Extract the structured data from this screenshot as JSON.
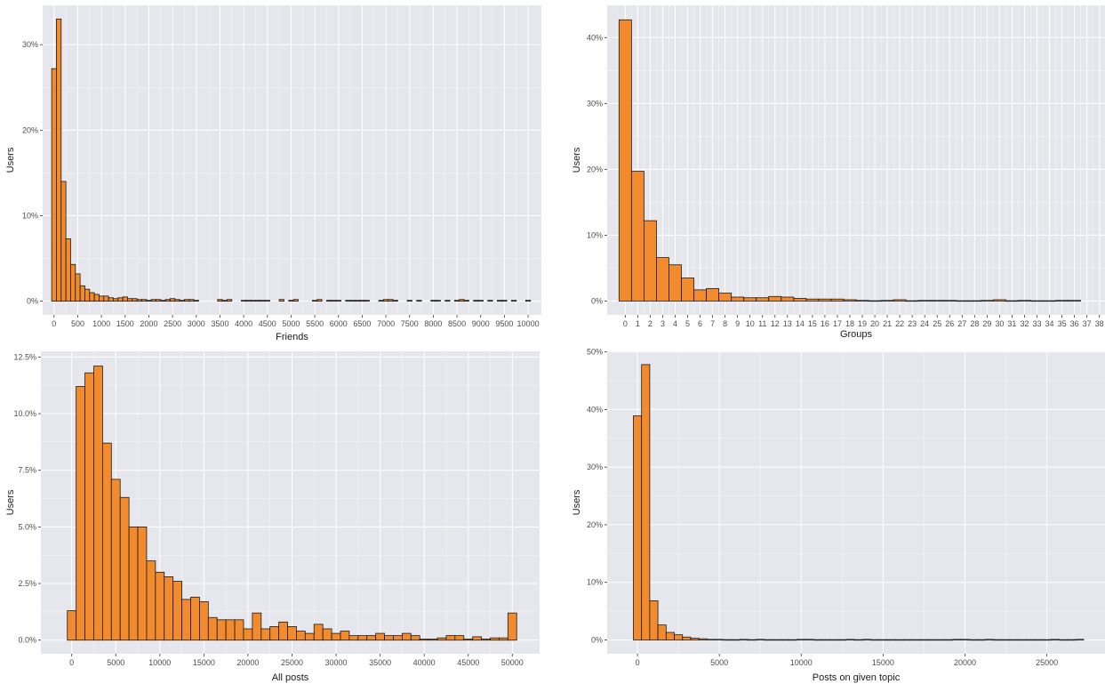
{
  "colors": {
    "panel_background": "#e5e7ec",
    "grid": "#ffffff",
    "bar_fill": "#f28a2e",
    "bar_stroke": "#1a1a1a"
  },
  "chart_data": [
    {
      "type": "bar",
      "xlabel": "Friends",
      "ylabel": "Users",
      "xlim": [
        -240,
        10280
      ],
      "ylim": [
        -1.6,
        34.6
      ],
      "bin_width": 100,
      "x_ticks": [
        0,
        500,
        1000,
        1500,
        2000,
        2500,
        3000,
        3500,
        4000,
        4500,
        5000,
        5500,
        6000,
        6500,
        7000,
        7500,
        8000,
        8500,
        9000,
        9500,
        10000
      ],
      "x_tick_labels": [
        "0",
        "500",
        "1000",
        "1500",
        "2000",
        "2500",
        "3000",
        "3500",
        "4000",
        "4500",
        "5000",
        "5500",
        "6000",
        "6500",
        "7000",
        "7500",
        "8000",
        "8500",
        "9000",
        "9500",
        "10000"
      ],
      "y_ticks": [
        0,
        10,
        20,
        30
      ],
      "y_tick_labels": [
        "0%",
        "10%",
        "20%",
        "30%"
      ],
      "x": [
        0,
        100,
        200,
        300,
        400,
        500,
        600,
        700,
        800,
        900,
        1000,
        1100,
        1200,
        1300,
        1400,
        1500,
        1600,
        1700,
        1800,
        1900,
        2000,
        2100,
        2200,
        2300,
        2400,
        2500,
        2600,
        2700,
        2800,
        2900,
        3000,
        3500,
        3600,
        3700,
        4000,
        4100,
        4200,
        4300,
        4400,
        4500,
        4800,
        5000,
        5100,
        5500,
        5600,
        5800,
        5900,
        6000,
        6200,
        6300,
        6400,
        6500,
        6600,
        6900,
        7000,
        7100,
        7200,
        7500,
        7700,
        8000,
        8100,
        8300,
        8500,
        8600,
        8700,
        8900,
        9000,
        9200,
        9400,
        9500,
        9700,
        10000
      ],
      "values": [
        27.2,
        33.0,
        14.0,
        7.3,
        4.3,
        3.2,
        1.8,
        1.4,
        1.0,
        0.8,
        0.6,
        0.6,
        0.4,
        0.3,
        0.4,
        0.5,
        0.3,
        0.3,
        0.2,
        0.2,
        0.1,
        0.2,
        0.2,
        0.1,
        0.2,
        0.3,
        0.2,
        0.1,
        0.2,
        0.2,
        0.1,
        0.2,
        0.1,
        0.2,
        0.1,
        0.1,
        0.1,
        0.1,
        0.1,
        0.1,
        0.2,
        0.1,
        0.2,
        0.1,
        0.2,
        0.1,
        0.1,
        0.1,
        0.1,
        0.1,
        0.1,
        0.1,
        0.1,
        0.1,
        0.2,
        0.2,
        0.1,
        0.1,
        0.1,
        0.1,
        0.1,
        0.1,
        0.1,
        0.2,
        0.1,
        0.1,
        0.1,
        0.1,
        0.1,
        0.1,
        0.1,
        0.1
      ]
    },
    {
      "type": "bar",
      "xlabel": "Groups",
      "ylabel": "Users",
      "xlim": [
        -1.45,
        38.45
      ],
      "ylim": [
        -2.1,
        44.9
      ],
      "bin_width": 1,
      "x_ticks": [
        0,
        1,
        2,
        3,
        4,
        5,
        6,
        7,
        8,
        9,
        10,
        11,
        12,
        13,
        14,
        15,
        16,
        17,
        18,
        19,
        20,
        21,
        22,
        23,
        24,
        25,
        26,
        27,
        28,
        29,
        30,
        31,
        32,
        33,
        34,
        35,
        36,
        37,
        38
      ],
      "x_tick_labels": [
        "0",
        "1",
        "2",
        "3",
        "4",
        "5",
        "6",
        "7",
        "8",
        "9",
        "10",
        "11",
        "12",
        "13",
        "14",
        "15",
        "16",
        "17",
        "18",
        "19",
        "20",
        "21",
        "22",
        "23",
        "24",
        "25",
        "26",
        "27",
        "28",
        "29",
        "30",
        "31",
        "32",
        "33",
        "34",
        "35",
        "36",
        "37",
        "38"
      ],
      "y_ticks": [
        0,
        10,
        20,
        30,
        40
      ],
      "y_tick_labels": [
        "0%",
        "10%",
        "20%",
        "30%",
        "40%"
      ],
      "x": [
        0,
        1,
        2,
        3,
        4,
        5,
        6,
        7,
        8,
        9,
        10,
        11,
        12,
        13,
        14,
        15,
        16,
        17,
        18,
        19,
        20,
        21,
        22,
        23,
        24,
        25,
        26,
        27,
        28,
        29,
        30,
        31,
        32,
        33,
        34,
        35,
        36
      ],
      "values": [
        42.7,
        19.7,
        12.2,
        6.6,
        5.5,
        3.5,
        1.7,
        1.9,
        1.2,
        0.6,
        0.5,
        0.5,
        0.7,
        0.6,
        0.4,
        0.3,
        0.3,
        0.3,
        0.2,
        0.1,
        0.05,
        0.1,
        0.2,
        0.05,
        0.1,
        0.1,
        0.1,
        0.05,
        0.05,
        0.1,
        0.2,
        0.05,
        0.1,
        0.05,
        0.05,
        0.1,
        0.1
      ]
    },
    {
      "type": "bar",
      "xlabel": "All posts",
      "ylabel": "Users",
      "xlim": [
        -3500,
        53100
      ],
      "ylim": [
        -0.6,
        12.75
      ],
      "bin_width": 1000,
      "x_ticks": [
        0,
        5000,
        10000,
        15000,
        20000,
        25000,
        30000,
        35000,
        40000,
        45000,
        50000
      ],
      "x_tick_labels": [
        "0",
        "5000",
        "10000",
        "15000",
        "20000",
        "25000",
        "30000",
        "35000",
        "40000",
        "45000",
        "50000"
      ],
      "y_ticks": [
        0,
        2.5,
        5,
        7.5,
        10,
        12.5
      ],
      "y_tick_labels": [
        "0.0%",
        "2.5%",
        "5.0%",
        "7.5%",
        "10.0%",
        "12.5%"
      ],
      "x": [
        0,
        1000,
        2000,
        3000,
        4000,
        5000,
        6000,
        7000,
        8000,
        9000,
        10000,
        11000,
        12000,
        13000,
        14000,
        15000,
        16000,
        17000,
        18000,
        19000,
        20000,
        21000,
        22000,
        23000,
        24000,
        25000,
        26000,
        27000,
        28000,
        29000,
        30000,
        31000,
        32000,
        33000,
        34000,
        35000,
        36000,
        37000,
        38000,
        39000,
        40000,
        41000,
        42000,
        43000,
        44000,
        45000,
        46000,
        47000,
        48000,
        49000,
        50000
      ],
      "values": [
        1.3,
        11.2,
        11.8,
        12.1,
        8.7,
        7.1,
        6.3,
        5.0,
        5.0,
        3.5,
        3.0,
        2.8,
        2.6,
        1.8,
        1.9,
        1.7,
        1.0,
        0.9,
        0.9,
        0.9,
        0.5,
        1.2,
        0.5,
        0.6,
        0.8,
        0.6,
        0.4,
        0.3,
        0.7,
        0.5,
        0.3,
        0.4,
        0.2,
        0.2,
        0.2,
        0.3,
        0.2,
        0.2,
        0.3,
        0.2,
        0.05,
        0.05,
        0.1,
        0.2,
        0.2,
        0.05,
        0.15,
        0.05,
        0.1,
        0.1,
        1.2
      ]
    },
    {
      "type": "bar",
      "xlabel": "Posts on given topic",
      "ylabel": "Users",
      "xlim": [
        -1850,
        28550
      ],
      "ylim": [
        -2.4,
        50.1
      ],
      "bin_width": 500,
      "x_ticks": [
        0,
        5000,
        10000,
        15000,
        20000,
        25000
      ],
      "x_tick_labels": [
        "0",
        "5000",
        "10000",
        "15000",
        "20000",
        "25000"
      ],
      "y_ticks": [
        0,
        10,
        20,
        30,
        40,
        50
      ],
      "y_tick_labels": [
        "0%",
        "10%",
        "20%",
        "30%",
        "40%",
        "50%"
      ],
      "x": [
        0,
        500,
        1000,
        1500,
        2000,
        2500,
        3000,
        3500,
        4000,
        4500,
        5000,
        5500,
        6000,
        6500,
        7000,
        7500,
        8000,
        8500,
        9000,
        9500,
        10000,
        10500,
        11000,
        11500,
        12000,
        12500,
        13000,
        13500,
        14000,
        14500,
        15000,
        15500,
        16000,
        16500,
        17000,
        17500,
        18000,
        18500,
        19000,
        19500,
        20000,
        20500,
        21000,
        21500,
        22000,
        22500,
        23000,
        23500,
        24000,
        24500,
        25000,
        25500,
        26000,
        26500,
        27000
      ],
      "values": [
        38.9,
        47.8,
        6.8,
        2.6,
        1.3,
        0.9,
        0.5,
        0.3,
        0.2,
        0.1,
        0.1,
        0.05,
        0.05,
        0.1,
        0.05,
        0.1,
        0.05,
        0.05,
        0.05,
        0.05,
        0.1,
        0.1,
        0.05,
        0.05,
        0.05,
        0.05,
        0.1,
        0.05,
        0.1,
        0.05,
        0.05,
        0.05,
        0.05,
        0.05,
        0.05,
        0.05,
        0.05,
        0.05,
        0.05,
        0.1,
        0.1,
        0.05,
        0.05,
        0.1,
        0.05,
        0.05,
        0.05,
        0.05,
        0.05,
        0.05,
        0.05,
        0.1,
        0.05,
        0.05,
        0.1
      ]
    }
  ]
}
